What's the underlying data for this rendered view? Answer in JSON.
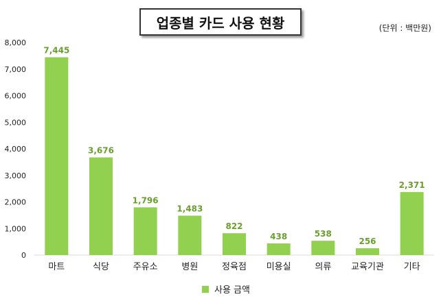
{
  "chart_data": {
    "type": "bar",
    "title": "업종별 카드 사용 현황",
    "unit": "(단위 : 백만원)",
    "categories": [
      "마트",
      "식당",
      "주유소",
      "병원",
      "정육점",
      "미용실",
      "의류",
      "교육기관",
      "기타"
    ],
    "series": [
      {
        "name": "사용 금액",
        "values": [
          7445,
          3676,
          1796,
          1483,
          822,
          438,
          538,
          256,
          2371
        ]
      }
    ],
    "data_labels": [
      "7,445",
      "3,676",
      "1,796",
      "1,483",
      "822",
      "438",
      "538",
      "256",
      "2,371"
    ],
    "ylim": [
      0,
      8000
    ],
    "yticks": [
      0,
      1000,
      2000,
      3000,
      4000,
      5000,
      6000,
      7000,
      8000
    ],
    "ytick_labels": [
      "0",
      "1,000",
      "2,000",
      "3,000",
      "4,000",
      "5,000",
      "6,000",
      "7,000",
      "8,000"
    ],
    "bar_color": "#92d050",
    "label_color": "#6a9f2f",
    "legend_position": "bottom",
    "grid": false
  }
}
